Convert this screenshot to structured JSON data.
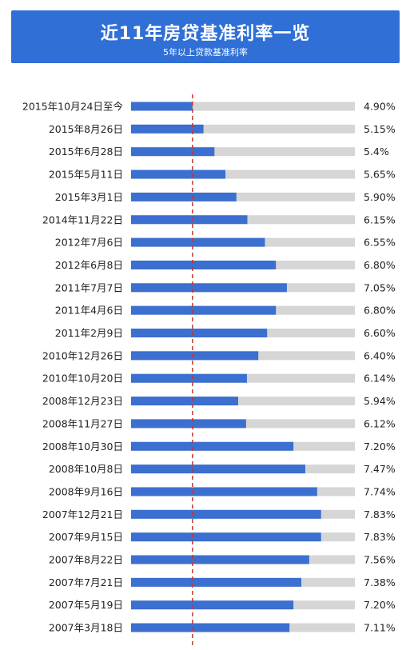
{
  "title": "近11年房贷基准利率一览",
  "subtitle": "5年以上贷款基准利率",
  "colors": {
    "banner": "#2f6fd6",
    "bar": "#3b6fd0",
    "track": "#d6d6d6",
    "refline": "#c0392b"
  },
  "chart_data": {
    "type": "bar",
    "orientation": "horizontal",
    "reference_value": 4.9,
    "xlim": [
      3.5,
      8.6
    ],
    "categories": [
      "2015年10月24日至今",
      "2015年8月26日",
      "2015年6月28日",
      "2015年5月11日",
      "2015年3月1日",
      "2014年11月22日",
      "2012年7月6日",
      "2012年6月8日",
      "2011年7月7日",
      "2011年4月6日",
      "2011年2月9日",
      "2010年12月26日",
      "2010年10月20日",
      "2008年12月23日",
      "2008年11月27日",
      "2008年10月30日",
      "2008年10月8日",
      "2008年9月16日",
      "2007年12月21日",
      "2007年9月15日",
      "2007年8月22日",
      "2007年7月21日",
      "2007年5月19日",
      "2007年3月18日"
    ],
    "values": [
      4.9,
      5.15,
      5.4,
      5.65,
      5.9,
      6.15,
      6.55,
      6.8,
      7.05,
      6.8,
      6.6,
      6.4,
      6.14,
      5.94,
      6.12,
      7.2,
      7.47,
      7.74,
      7.83,
      7.83,
      7.56,
      7.38,
      7.2,
      7.11
    ],
    "value_labels": [
      "4.90%",
      "5.15%",
      "5.4%",
      "5.65%",
      "5.90%",
      "6.15%",
      "6.55%",
      "6.80%",
      "7.05%",
      "6.80%",
      "6.60%",
      "6.40%",
      "6.14%",
      "5.94%",
      "6.12%",
      "7.20%",
      "7.47%",
      "7.74%",
      "7.83%",
      "7.83%",
      "7.56%",
      "7.38%",
      "7.20%",
      "7.11%"
    ]
  }
}
